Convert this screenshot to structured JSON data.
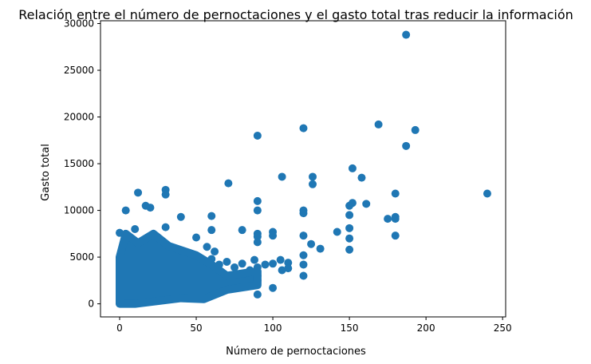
{
  "chart_data": {
    "type": "scatter",
    "title": "Relación entre el número de pernoctaciones y el gasto total tras reducir la información",
    "xlabel": "Número de pernoctaciones",
    "ylabel": "Gasto total",
    "xlim": [
      -12.5,
      252
    ],
    "ylim": [
      -1400,
      30300
    ],
    "xticks": [
      0,
      50,
      100,
      150,
      200,
      250
    ],
    "yticks": [
      0,
      5000,
      10000,
      15000,
      20000,
      25000,
      30000
    ],
    "grid": false,
    "legend": "none",
    "marker_color": "#1f77b4",
    "series": [
      {
        "x": [
          187,
          169,
          120,
          193,
          90,
          187,
          152,
          106,
          158,
          126,
          126,
          71,
          240,
          180,
          152,
          120,
          161,
          150,
          180,
          180,
          175,
          180,
          12,
          30,
          30,
          20,
          17,
          40,
          150,
          150,
          150,
          4,
          120,
          90,
          0,
          100,
          142,
          125,
          131,
          120,
          150,
          120,
          80,
          60,
          60,
          90,
          70,
          57,
          90,
          90,
          100,
          100,
          105,
          110,
          120,
          30,
          20,
          10,
          50,
          90,
          106,
          90,
          75,
          65,
          60,
          62,
          60,
          80,
          85,
          90,
          95,
          100,
          110,
          120,
          90,
          90,
          88
        ],
        "y": [
          28800,
          19200,
          18800,
          18600,
          18000,
          16900,
          14500,
          13600,
          13500,
          13600,
          12800,
          12900,
          11800,
          11800,
          10800,
          10000,
          10700,
          10500,
          9300,
          9100,
          9100,
          7300,
          11900,
          12200,
          11700,
          10300,
          10500,
          9300,
          8100,
          7000,
          5800,
          10000,
          9700,
          7500,
          7600,
          7700,
          7700,
          6400,
          5900,
          5200,
          9500,
          7300,
          7900,
          9400,
          7900,
          11000,
          4500,
          6100,
          7200,
          6600,
          7300,
          4300,
          4700,
          4400,
          3000,
          8200,
          6300,
          8000,
          7100,
          10000,
          3600,
          1000,
          3900,
          4200,
          3600,
          5600,
          4800,
          4300,
          3600,
          3900,
          4200,
          1700,
          3800,
          4200,
          2500,
          3000,
          4700
        ]
      }
    ]
  }
}
